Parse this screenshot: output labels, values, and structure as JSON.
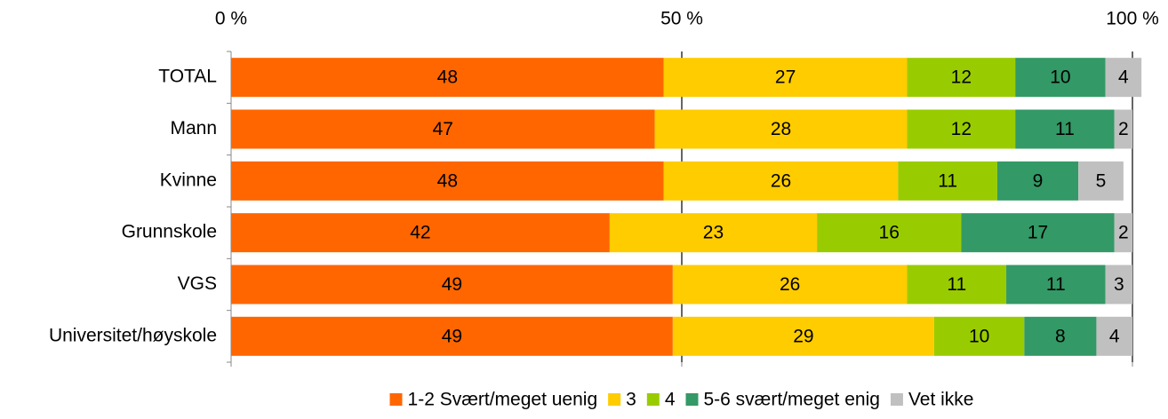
{
  "chart_data": {
    "type": "stacked-barh",
    "categories": [
      "TOTAL",
      "Mann",
      "Kvinne",
      "Grunnskole",
      "VGS",
      "Universitet/høyskole"
    ],
    "series": [
      {
        "name": "1-2 Svært/meget uenig",
        "color": "#ff6600",
        "values": [
          48,
          47,
          48,
          42,
          49,
          49
        ]
      },
      {
        "name": "3",
        "color": "#ffcc00",
        "values": [
          27,
          28,
          26,
          23,
          26,
          29
        ]
      },
      {
        "name": "4",
        "color": "#99cc00",
        "values": [
          12,
          12,
          11,
          16,
          11,
          10
        ]
      },
      {
        "name": "5-6 svært/meget enig",
        "color": "#339966",
        "values": [
          10,
          11,
          9,
          17,
          11,
          8
        ]
      },
      {
        "name": "Vet ikke",
        "color": "#c0c0c0",
        "values": [
          4,
          2,
          5,
          2,
          3,
          4
        ]
      }
    ],
    "xlim": [
      0,
      100
    ],
    "xticks": [
      {
        "value": 0,
        "label": "0 %"
      },
      {
        "value": 50,
        "label": "50 %"
      },
      {
        "value": 100,
        "label": "100 %"
      }
    ],
    "grid": true,
    "legend": "bottom"
  }
}
